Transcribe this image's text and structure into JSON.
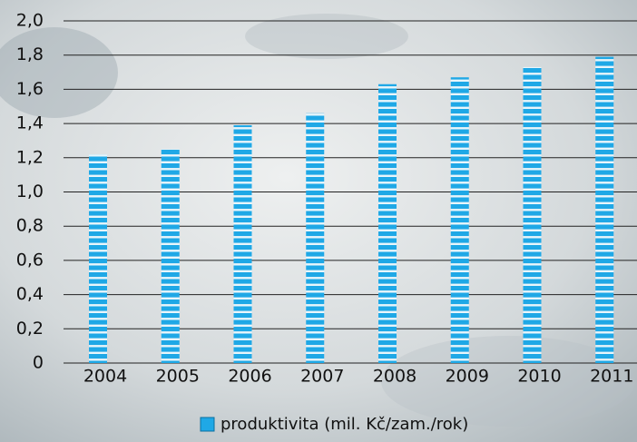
{
  "chart_data": {
    "type": "bar",
    "categories": [
      "2004",
      "2005",
      "2006",
      "2007",
      "2008",
      "2009",
      "2010",
      "2011"
    ],
    "series": [
      {
        "name": "produktivita (mil. Kč/zam./rok)",
        "color": "#1fa8e6",
        "values": [
          1.22,
          1.25,
          1.39,
          1.46,
          1.63,
          1.67,
          1.73,
          1.79
        ]
      }
    ],
    "ylim": [
      0,
      2.0
    ],
    "yticks": [
      0,
      {
        "value": 0.2,
        "label": "0,2"
      },
      {
        "value": 0.4,
        "label": "0,4"
      },
      {
        "value": 0.6,
        "label": "0,6"
      },
      {
        "value": 0.8,
        "label": "0,8"
      },
      {
        "value": 1.0,
        "label": "1,0"
      },
      {
        "value": 1.2,
        "label": "1,2"
      },
      {
        "value": 1.4,
        "label": "1,4"
      },
      {
        "value": 1.6,
        "label": "1,6"
      },
      {
        "value": 1.8,
        "label": "1,8"
      },
      {
        "value": 2.0,
        "label": "2,0"
      }
    ],
    "grid": true,
    "legend": "bottom"
  }
}
